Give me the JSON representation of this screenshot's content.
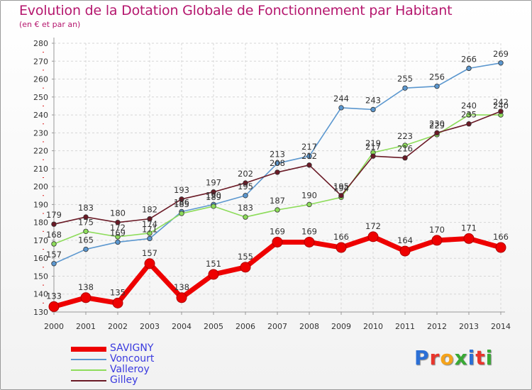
{
  "chart_data": {
    "type": "line",
    "title": "Evolution de la Dotation Globale de Fonctionnement par Habitant",
    "subtitle": "(en € et par an)",
    "xlabel": "",
    "ylabel": "",
    "x": [
      2000,
      2001,
      2002,
      2003,
      2004,
      2005,
      2006,
      2007,
      2008,
      2009,
      2010,
      2011,
      2012,
      2013,
      2014
    ],
    "yticks": [
      130,
      140,
      150,
      160,
      170,
      180,
      190,
      200,
      210,
      220,
      230,
      240,
      250,
      260,
      270,
      280
    ],
    "ylim": [
      130,
      280
    ],
    "grid": true,
    "legend_position": "bottom-left",
    "series": [
      {
        "name": "Voncourt",
        "color": "#5b97cf",
        "values": [
          157,
          165,
          169,
          171,
          186,
          190,
          195,
          213,
          217,
          244,
          243,
          255,
          256,
          266,
          269
        ],
        "labels": [
          "157",
          "165",
          "169",
          "171",
          "186",
          "190",
          "195",
          "213",
          "217",
          "244",
          "243",
          "255",
          "256",
          "266",
          "269"
        ]
      },
      {
        "name": "Valleroy",
        "color": "#8ddc5a",
        "values": [
          168,
          175,
          172,
          174,
          185,
          189,
          183,
          187,
          190,
          194,
          219,
          223,
          229,
          240,
          240
        ],
        "labels": [
          "168",
          "175",
          "172",
          "174",
          "185",
          "189",
          "183",
          "187",
          "190",
          "194",
          "219",
          "223",
          "229",
          "240",
          "240"
        ]
      },
      {
        "name": "Gilley",
        "color": "#6a1a26",
        "values": [
          179,
          183,
          180,
          182,
          193,
          197,
          202,
          208,
          212,
          195,
          217,
          216,
          230,
          235,
          242
        ],
        "labels": [
          "179",
          "183",
          "180",
          "182",
          "193",
          "197",
          "202",
          "208",
          "212",
          "195",
          "217",
          "216",
          "230",
          "235",
          "242"
        ]
      },
      {
        "name": "SAVIGNY",
        "color": "#ee0000",
        "values": [
          133,
          138,
          135,
          157,
          138,
          151,
          155,
          169,
          169,
          166,
          172,
          164,
          170,
          171,
          166
        ],
        "labels": [
          "133",
          "138",
          "135",
          "157",
          "138",
          "151",
          "155",
          "169",
          "169",
          "166",
          "172",
          "164",
          "170",
          "171",
          "166"
        ]
      }
    ]
  },
  "legend": {
    "items": [
      {
        "label": "SAVIGNY",
        "color": "#ee0000"
      },
      {
        "label": "Voncourt",
        "color": "#5b97cf"
      },
      {
        "label": "Valleroy",
        "color": "#8ddc5a"
      },
      {
        "label": "Gilley",
        "color": "#6a1a26"
      }
    ]
  },
  "logo": {
    "text": "Proxiti",
    "colors": [
      "#2b6fd6",
      "#e8352c",
      "#f5a31a",
      "#39a935",
      "#2b6fd6",
      "#e8352c",
      "#39a935"
    ]
  }
}
